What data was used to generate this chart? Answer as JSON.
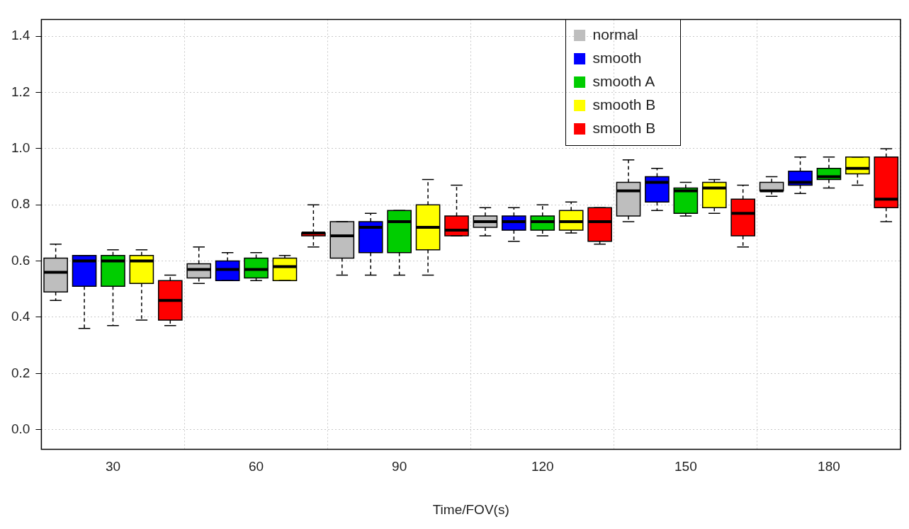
{
  "chart_data": {
    "type": "box",
    "xlabel": "Time/FOV(s)",
    "categories": [
      "30",
      "60",
      "90",
      "120",
      "150",
      "180"
    ],
    "ylim": [
      -0.07,
      1.46
    ],
    "yticks": [
      {
        "value": 0,
        "label": "0.0"
      },
      0.2,
      0.4,
      0.6,
      0.8,
      {
        "value": 1,
        "label": "1.0"
      },
      1.2,
      1.4
    ],
    "grid": true,
    "legend": "top",
    "tick_labels": "xy",
    "series": [
      {
        "name": "normal",
        "color": "#bebebe",
        "boxes": [
          {
            "low": 0.46,
            "q1": 0.49,
            "median": 0.56,
            "q3": 0.61,
            "high": 0.66
          },
          {
            "low": 0.52,
            "q1": 0.54,
            "median": 0.57,
            "q3": 0.59,
            "high": 0.65
          },
          {
            "low": 0.55,
            "q1": 0.61,
            "median": 0.69,
            "q3": 0.74,
            "high": 0.74
          },
          {
            "low": 0.69,
            "q1": 0.72,
            "median": 0.74,
            "q3": 0.76,
            "high": 0.79
          },
          {
            "low": 0.74,
            "q1": 0.76,
            "median": 0.85,
            "q3": 0.88,
            "high": 0.96
          },
          {
            "low": 0.83,
            "q1": 0.85,
            "median": 0.85,
            "q3": 0.88,
            "high": 0.9
          }
        ]
      },
      {
        "name": "smooth",
        "color": "#0000ff",
        "boxes": [
          {
            "low": 0.36,
            "q1": 0.51,
            "median": 0.6,
            "q3": 0.62,
            "high": 0.62
          },
          {
            "low": 0.53,
            "q1": 0.53,
            "median": 0.57,
            "q3": 0.6,
            "high": 0.63
          },
          {
            "low": 0.55,
            "q1": 0.63,
            "median": 0.72,
            "q3": 0.74,
            "high": 0.77
          },
          {
            "low": 0.67,
            "q1": 0.71,
            "median": 0.74,
            "q3": 0.76,
            "high": 0.79
          },
          {
            "low": 0.78,
            "q1": 0.81,
            "median": 0.88,
            "q3": 0.9,
            "high": 0.93
          },
          {
            "low": 0.84,
            "q1": 0.87,
            "median": 0.88,
            "q3": 0.92,
            "high": 0.97
          }
        ]
      },
      {
        "name": "smooth A",
        "color": "#00cd00",
        "boxes": [
          {
            "low": 0.37,
            "q1": 0.51,
            "median": 0.6,
            "q3": 0.62,
            "high": 0.64
          },
          {
            "low": 0.53,
            "q1": 0.54,
            "median": 0.57,
            "q3": 0.61,
            "high": 0.63
          },
          {
            "low": 0.55,
            "q1": 0.63,
            "median": 0.74,
            "q3": 0.78,
            "high": 0.78
          },
          {
            "low": 0.69,
            "q1": 0.71,
            "median": 0.74,
            "q3": 0.76,
            "high": 0.8
          },
          {
            "low": 0.76,
            "q1": 0.77,
            "median": 0.85,
            "q3": 0.86,
            "high": 0.88
          },
          {
            "low": 0.86,
            "q1": 0.89,
            "median": 0.9,
            "q3": 0.93,
            "high": 0.97
          }
        ]
      },
      {
        "name": "smooth B",
        "color": "#ffff00",
        "boxes": [
          {
            "low": 0.39,
            "q1": 0.52,
            "median": 0.6,
            "q3": 0.62,
            "high": 0.64
          },
          {
            "low": 0.53,
            "q1": 0.53,
            "median": 0.58,
            "q3": 0.61,
            "high": 0.62
          },
          {
            "low": 0.55,
            "q1": 0.64,
            "median": 0.72,
            "q3": 0.8,
            "high": 0.89
          },
          {
            "low": 0.7,
            "q1": 0.71,
            "median": 0.74,
            "q3": 0.78,
            "high": 0.81
          },
          {
            "low": 0.77,
            "q1": 0.79,
            "median": 0.86,
            "q3": 0.88,
            "high": 0.89
          },
          {
            "low": 0.87,
            "q1": 0.91,
            "median": 0.93,
            "q3": 0.97,
            "high": 0.97
          }
        ]
      },
      {
        "name": "smooth B",
        "color": "#ff0000",
        "boxes": [
          {
            "low": 0.37,
            "q1": 0.39,
            "median": 0.46,
            "q3": 0.53,
            "high": 0.55
          },
          {
            "low": 0.65,
            "q1": 0.69,
            "median": 0.7,
            "q3": 0.7,
            "high": 0.8
          },
          {
            "low": 0.69,
            "q1": 0.69,
            "median": 0.71,
            "q3": 0.76,
            "high": 0.87
          },
          {
            "low": 0.66,
            "q1": 0.67,
            "median": 0.74,
            "q3": 0.79,
            "high": 0.79
          },
          {
            "low": 0.65,
            "q1": 0.69,
            "median": 0.77,
            "q3": 0.82,
            "high": 0.87
          },
          {
            "low": 0.74,
            "q1": 0.79,
            "median": 0.82,
            "q3": 0.97,
            "high": 1.0
          }
        ]
      }
    ]
  }
}
